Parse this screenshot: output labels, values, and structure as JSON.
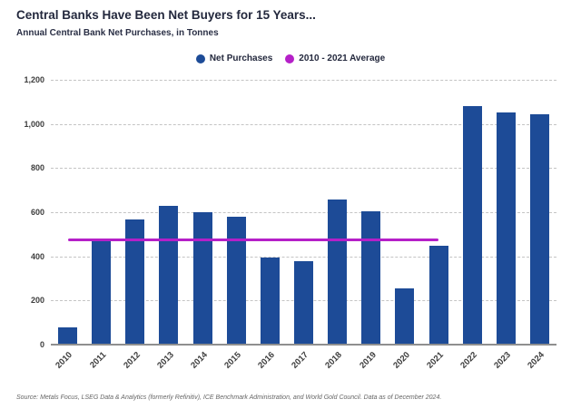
{
  "header": {
    "title": "Central Banks Have Been Net Buyers for 15 Years...",
    "subtitle": "Annual Central Bank Net Purchases, in Tonnes"
  },
  "legend": {
    "items": [
      {
        "label": "Net Purchases",
        "color": "#1d4b97"
      },
      {
        "label": "2010 - 2021 Average",
        "color": "#b520c8"
      }
    ]
  },
  "chart_data": {
    "type": "bar",
    "title": "Central Banks Have Been Net Buyers for 15 Years...",
    "subtitle": "Annual Central Bank Net Purchases, in Tonnes",
    "categories": [
      "2010",
      "2011",
      "2012",
      "2013",
      "2014",
      "2015",
      "2016",
      "2017",
      "2018",
      "2019",
      "2020",
      "2021",
      "2022",
      "2023",
      "2024"
    ],
    "series": [
      {
        "name": "Net Purchases",
        "color": "#1d4b97",
        "values": [
          79,
          481,
          569,
          629,
          601,
          580,
          395,
          379,
          656,
          605,
          255,
          450,
          1082,
          1051,
          1045
        ]
      }
    ],
    "average_line": {
      "name": "2010 - 2021 Average",
      "value": 473,
      "color": "#b520c8",
      "from_category": "2010",
      "to_category": "2021"
    },
    "xlabel": "",
    "ylabel": "",
    "ylim": [
      0,
      1200
    ],
    "yticks": [
      {
        "value": 0,
        "label": "0"
      },
      {
        "value": 200,
        "label": "200"
      },
      {
        "value": 400,
        "label": "400"
      },
      {
        "value": 600,
        "label": "600"
      },
      {
        "value": 800,
        "label": "800"
      },
      {
        "value": 1000,
        "label": "1,000"
      },
      {
        "value": 1200,
        "label": "1,200"
      }
    ],
    "grid": "horizontal-dashed",
    "legend_position": "top-center"
  },
  "footer": {
    "source": "Source: Metals Focus, LSEG Data & Analytics (formerly Refinitiv), ICE Benchmark Administration, and World Gold Council. Data as of December 2024."
  }
}
